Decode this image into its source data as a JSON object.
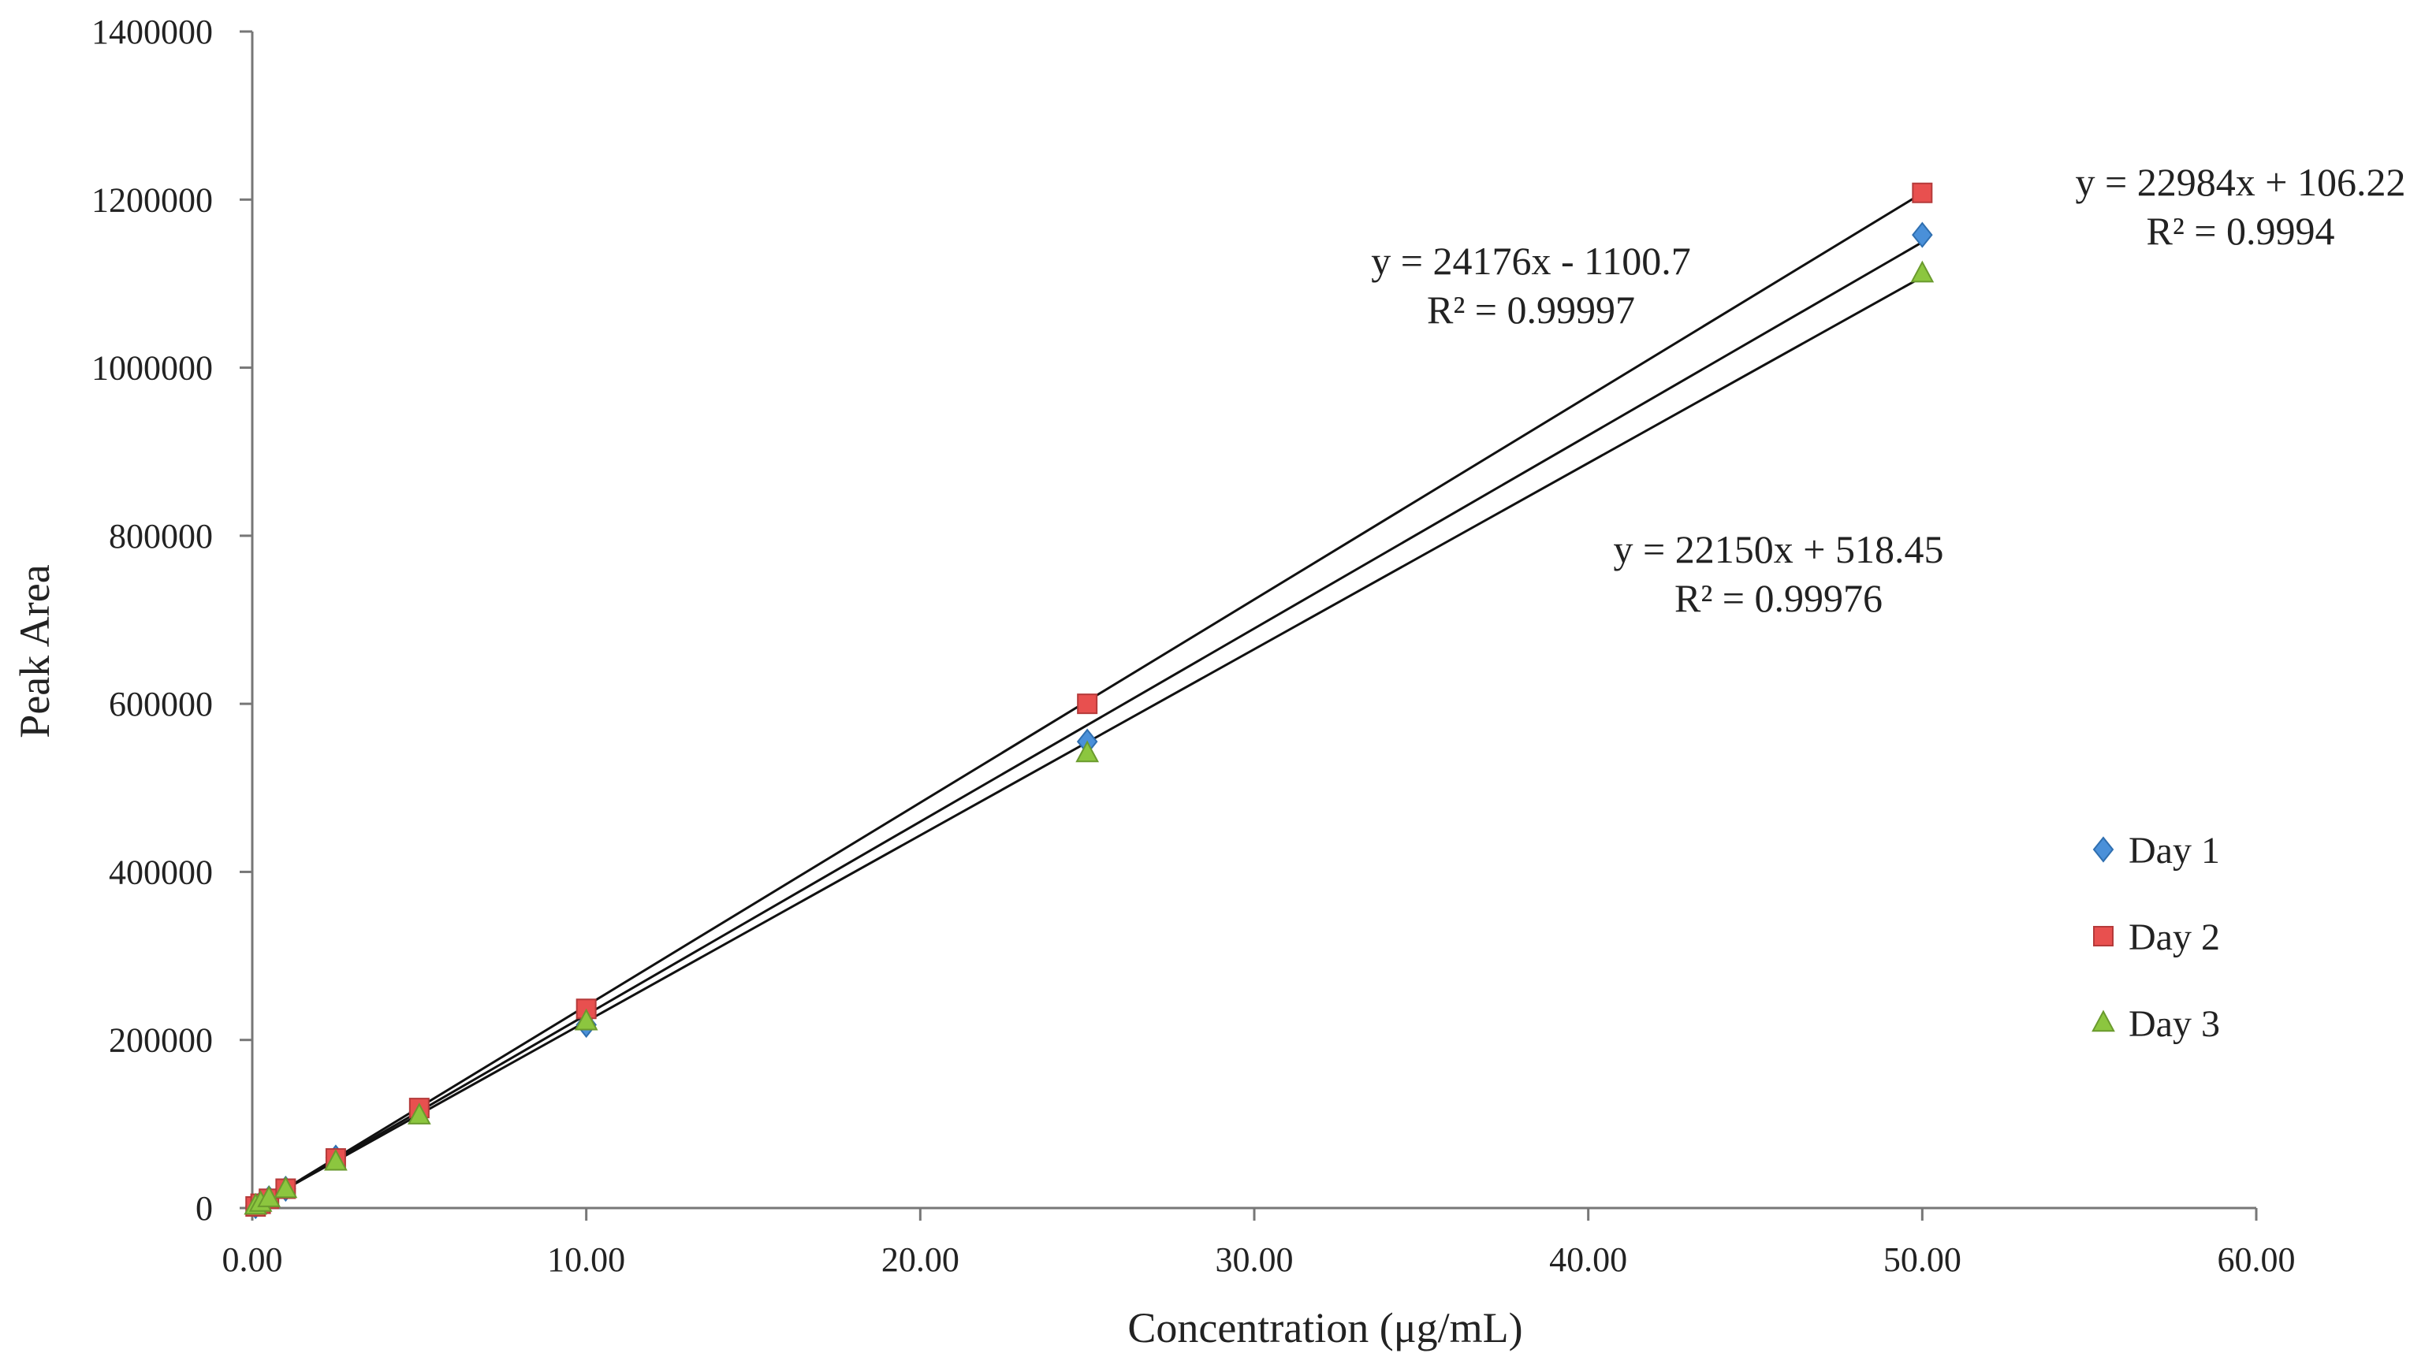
{
  "chart_data": {
    "type": "scatter",
    "title": "",
    "xlabel": "Concentration (μg/mL)",
    "ylabel": "Peak Area",
    "xlim": [
      0,
      60
    ],
    "ylim": [
      0,
      1400000
    ],
    "x_ticks": [
      "0.00",
      "10.00",
      "20.00",
      "30.00",
      "40.00",
      "50.00",
      "60.00"
    ],
    "y_ticks": [
      "0",
      "200000",
      "400000",
      "600000",
      "800000",
      "1000000",
      "1200000",
      "1400000"
    ],
    "grid": false,
    "legend": {
      "placement": "right",
      "entries": [
        "Day 1",
        "Day 2",
        "Day 3"
      ]
    },
    "series": [
      {
        "name": "Day 1",
        "marker": "diamond",
        "color": "#4a90d9",
        "x": [
          0.1,
          0.25,
          0.5,
          1.0,
          2.5,
          5.0,
          10.0,
          25.0,
          50.0
        ],
        "y": [
          2300,
          5800,
          11600,
          23000,
          60000,
          115000,
          218000,
          555000,
          1158000
        ],
        "trendline": {
          "slope": 22984,
          "intercept": 106.22,
          "equation": "y = 22984x + 106.22",
          "r2": "R² = 0.9994"
        }
      },
      {
        "name": "Day 2",
        "marker": "square",
        "color": "#e8504f",
        "x": [
          0.1,
          0.25,
          0.5,
          1.0,
          2.5,
          5.0,
          10.0,
          25.0,
          50.0
        ],
        "y": [
          1900,
          5100,
          11000,
          23000,
          59000,
          119000,
          237000,
          600000,
          1208000
        ],
        "trendline": {
          "slope": 24176,
          "intercept": -1100.7,
          "equation": "y = 24176x - 1100.7",
          "r2": "R² = 0.99997"
        }
      },
      {
        "name": "Day 3",
        "marker": "triangle",
        "color": "#8cc63f",
        "x": [
          0.1,
          0.25,
          0.5,
          1.0,
          2.5,
          5.0,
          10.0,
          25.0,
          50.0
        ],
        "y": [
          2700,
          6000,
          11500,
          22500,
          55000,
          110000,
          222000,
          541000,
          1112000
        ],
        "trendline": {
          "slope": 22150,
          "intercept": 518.45,
          "equation": "y = 22150x + 518.45",
          "r2": "R² = 0.99976"
        }
      }
    ]
  }
}
